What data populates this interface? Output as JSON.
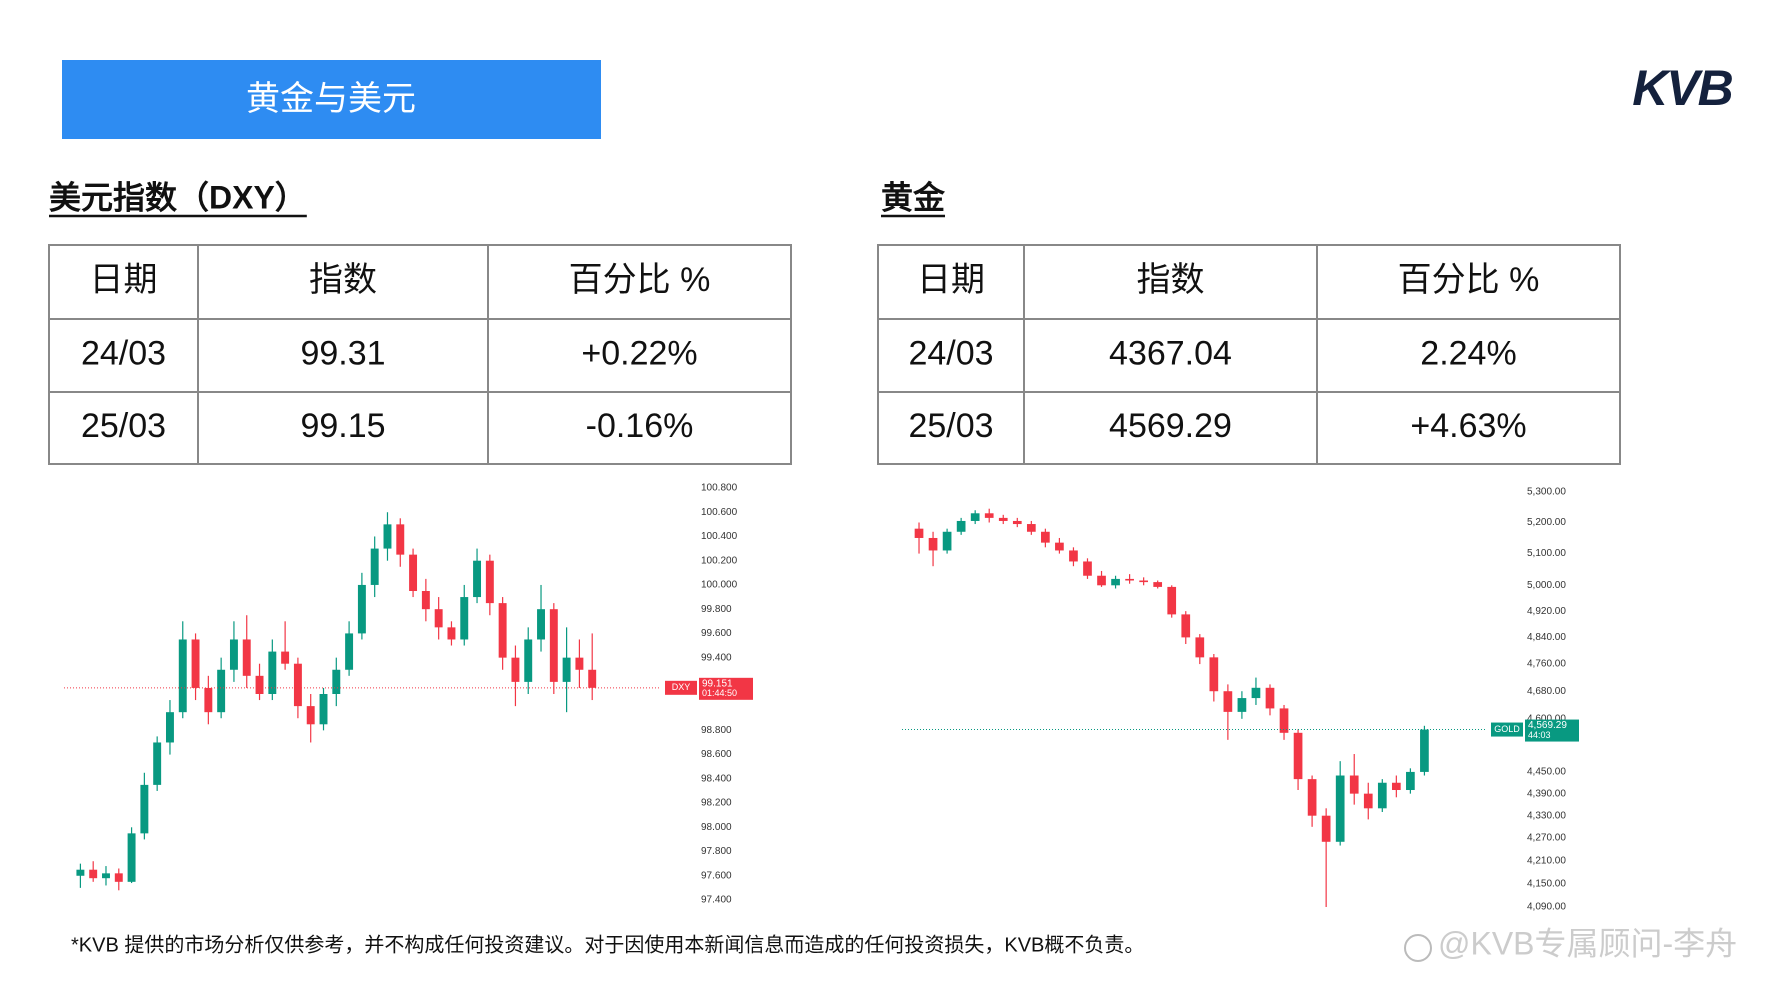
{
  "header": {
    "title": "黄金与美元",
    "logo": "KVB"
  },
  "sections": [
    {
      "heading": "美元指数（DXY）",
      "table": {
        "columns": [
          "日期",
          "指数",
          "百分比 %"
        ],
        "rows": [
          [
            "24/03",
            "99.31",
            "+0.22%"
          ],
          [
            "25/03",
            "99.15",
            "-0.16%"
          ]
        ],
        "change_colors": [
          "#1a9a1a",
          "#e8141c"
        ]
      }
    },
    {
      "heading": "黄金",
      "table": {
        "columns": [
          "日期",
          "指数",
          "百分比 %"
        ],
        "rows": [
          [
            "24/03",
            "4367.04",
            "2.24%"
          ],
          [
            "25/03",
            "4569.29",
            "+4.63%"
          ]
        ],
        "change_colors": [
          "#e8141c",
          "#1a9a1a"
        ]
      }
    }
  ],
  "chart_data": [
    {
      "type": "candlestick",
      "symbol": "DXY",
      "open": [
        97.6,
        97.65,
        97.58,
        97.62,
        97.55,
        97.95,
        98.35,
        98.7,
        98.95,
        99.55,
        99.15,
        98.95,
        99.3,
        99.55,
        99.25,
        99.1,
        99.45,
        99.35,
        99.0,
        98.85,
        99.1,
        99.3,
        99.6,
        100.0,
        100.3,
        100.5,
        100.25,
        99.95,
        99.8,
        99.65,
        99.55,
        99.9,
        100.2,
        99.85,
        99.4,
        99.2,
        99.55,
        99.8,
        99.2,
        99.4,
        99.3
      ],
      "high": [
        97.7,
        97.72,
        97.68,
        97.66,
        98.0,
        98.45,
        98.75,
        99.05,
        99.7,
        99.6,
        99.25,
        99.4,
        99.7,
        99.75,
        99.35,
        99.55,
        99.7,
        99.4,
        99.1,
        99.15,
        99.4,
        99.7,
        100.1,
        100.4,
        100.6,
        100.55,
        100.3,
        100.05,
        99.9,
        99.7,
        100.0,
        100.3,
        100.25,
        99.9,
        99.5,
        99.65,
        100.0,
        99.85,
        99.65,
        99.55,
        99.6
      ],
      "low": [
        97.5,
        97.55,
        97.52,
        97.48,
        97.54,
        97.9,
        98.3,
        98.6,
        98.9,
        99.05,
        98.85,
        98.9,
        99.2,
        99.15,
        99.05,
        99.05,
        99.3,
        98.9,
        98.7,
        98.8,
        99.0,
        99.25,
        99.55,
        99.9,
        100.2,
        100.15,
        99.9,
        99.7,
        99.55,
        99.5,
        99.5,
        99.85,
        99.75,
        99.3,
        99.0,
        99.1,
        99.45,
        99.1,
        98.95,
        99.15,
        99.05
      ],
      "close": [
        97.65,
        97.58,
        97.62,
        97.55,
        97.95,
        98.35,
        98.7,
        98.95,
        99.55,
        99.15,
        98.95,
        99.3,
        99.55,
        99.25,
        99.1,
        99.45,
        99.35,
        99.0,
        98.85,
        99.1,
        99.3,
        99.6,
        100.0,
        100.3,
        100.5,
        100.25,
        99.95,
        99.8,
        99.65,
        99.55,
        99.9,
        100.2,
        99.85,
        99.4,
        99.2,
        99.55,
        99.8,
        99.2,
        99.4,
        99.3,
        99.151
      ],
      "up_color": "#089981",
      "down_color": "#f23645",
      "log_scale": false,
      "ylim": [
        97.4,
        100.8
      ],
      "yticks": [
        {
          "value": 100.8,
          "label": "100.800"
        },
        {
          "value": 100.6,
          "label": "100.600"
        },
        {
          "value": 100.4,
          "label": "100.400"
        },
        {
          "value": 100.2,
          "label": "100.200"
        },
        {
          "value": 100,
          "label": "100.000"
        },
        {
          "value": 99.8,
          "label": "99.800"
        },
        {
          "value": 99.6,
          "label": "99.600"
        },
        {
          "value": 99.4,
          "label": "99.400"
        },
        {
          "value": 98.8,
          "label": "98.800"
        },
        {
          "value": 98.6,
          "label": "98.600"
        },
        {
          "value": 98.4,
          "label": "98.400"
        },
        {
          "value": 98.2,
          "label": "98.200"
        },
        {
          "value": 98,
          "label": "98.000"
        },
        {
          "value": 97.8,
          "label": "97.800"
        },
        {
          "value": 97.6,
          "label": "97.600"
        },
        {
          "value": 97.4,
          "label": "97.400"
        }
      ],
      "last_price": 99.151,
      "countdown": "01:44:50",
      "last_color": "#f23645"
    },
    {
      "type": "candlestick",
      "symbol": "GOLD",
      "open": [
        5180,
        5150,
        5110,
        5170,
        5205,
        5230,
        5215,
        5205,
        5195,
        5170,
        5135,
        5110,
        5075,
        5030,
        5000,
        5020,
        5015,
        5010,
        4995,
        4910,
        4840,
        4780,
        4680,
        4620,
        4660,
        4690,
        4630,
        4560,
        4430,
        4330,
        4260,
        4440,
        4390,
        4350,
        4420,
        4400,
        4450
      ],
      "high": [
        5200,
        5170,
        5180,
        5215,
        5240,
        5245,
        5225,
        5215,
        5205,
        5180,
        5150,
        5120,
        5085,
        5045,
        5030,
        5035,
        5025,
        5015,
        5000,
        4920,
        4850,
        4790,
        4700,
        4680,
        4720,
        4700,
        4640,
        4570,
        4440,
        4350,
        4480,
        4500,
        4420,
        4430,
        4440,
        4460,
        4580
      ],
      "low": [
        5100,
        5060,
        5100,
        5160,
        5195,
        5200,
        5195,
        5185,
        5160,
        5120,
        5100,
        5060,
        5020,
        4995,
        4990,
        5005,
        5000,
        4990,
        4900,
        4820,
        4760,
        4650,
        4540,
        4600,
        4640,
        4610,
        4540,
        4400,
        4300,
        4090,
        4250,
        4360,
        4320,
        4340,
        4380,
        4390,
        4440
      ],
      "close": [
        5150,
        5110,
        5170,
        5205,
        5230,
        5215,
        5205,
        5195,
        5170,
        5135,
        5110,
        5075,
        5030,
        5000,
        5020,
        5015,
        5010,
        4995,
        4910,
        4840,
        4780,
        4680,
        4620,
        4660,
        4690,
        4630,
        4560,
        4430,
        4330,
        4260,
        4440,
        4390,
        4350,
        4420,
        4400,
        4450,
        4569.29
      ],
      "up_color": "#089981",
      "down_color": "#f23645",
      "log_scale": true,
      "ylim": [
        4090,
        5300
      ],
      "yticks": [
        {
          "value": 5300,
          "label": "5,300.00"
        },
        {
          "value": 5200,
          "label": "5,200.00"
        },
        {
          "value": 5100,
          "label": "5,100.00"
        },
        {
          "value": 5000,
          "label": "5,000.00"
        },
        {
          "value": 4920,
          "label": "4,920.00"
        },
        {
          "value": 4840,
          "label": "4,840.00"
        },
        {
          "value": 4760,
          "label": "4,760.00"
        },
        {
          "value": 4680,
          "label": "4,680.00"
        },
        {
          "value": 4600,
          "label": "4,600.00"
        },
        {
          "value": 4450,
          "label": "4,450.00"
        },
        {
          "value": 4390,
          "label": "4,390.00"
        },
        {
          "value": 4330,
          "label": "4,330.00"
        },
        {
          "value": 4270,
          "label": "4,270.00"
        },
        {
          "value": 4210,
          "label": "4,210.00"
        },
        {
          "value": 4150,
          "label": "4,150.00"
        },
        {
          "value": 4090,
          "label": "4,090.00"
        }
      ],
      "last_price": {
        "value": 4569.29,
        "label": "4,569.29"
      },
      "countdown": "44:03",
      "last_color": "#089981"
    }
  ],
  "footer": {
    "disclaimer": "*KVB 提供的市场分析仅供参考，并不构成任何投资建议。对于因使用本新闻信息而造成的任何投资损失，KVB概不负责。",
    "watermark": "@KVB专属顾问-李舟"
  }
}
